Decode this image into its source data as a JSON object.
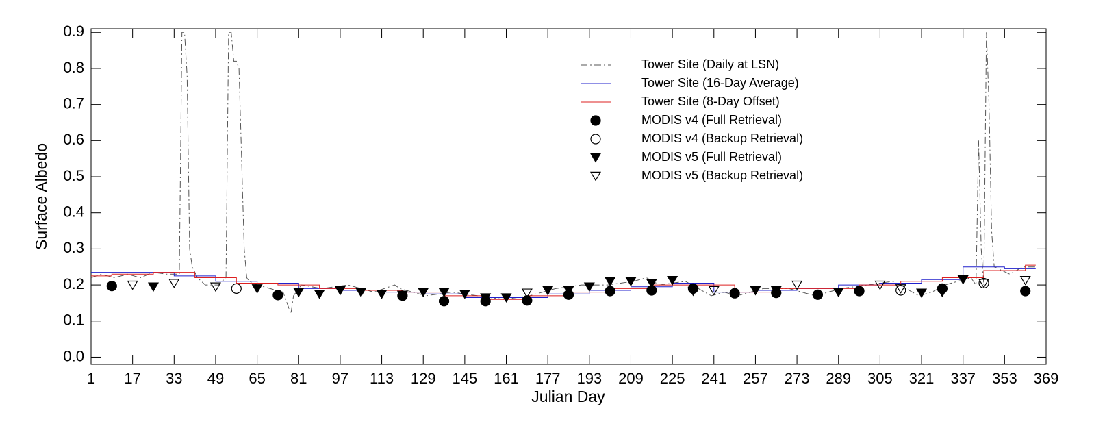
{
  "chart_data": {
    "type": "line",
    "xlabel": "Julian Day",
    "ylabel": "Surface Albedo",
    "xlim": [
      1,
      369
    ],
    "ylim": [
      -0.02,
      0.91
    ],
    "xticks": [
      1,
      17,
      33,
      49,
      65,
      81,
      97,
      113,
      129,
      145,
      161,
      177,
      193,
      209,
      225,
      241,
      257,
      273,
      289,
      305,
      321,
      337,
      353,
      369
    ],
    "yticks": [
      {
        "value": 0,
        "label": "0.0"
      },
      0.1,
      0.2,
      0.3,
      0.4,
      0.5,
      0.6,
      0.7,
      0.8,
      0.9
    ],
    "legend": "upper-center",
    "series": [
      {
        "name": "Tower Site (Daily at LSN)",
        "color": "#555555",
        "style": "dashdot",
        "x": [
          1,
          5,
          10,
          15,
          20,
          25,
          30,
          35,
          36,
          37,
          38,
          39,
          40,
          42,
          45,
          50,
          53,
          54,
          55,
          56,
          57,
          58,
          60,
          61,
          62,
          65,
          70,
          75,
          78,
          79,
          82,
          90,
          100,
          110,
          118,
          120,
          125,
          130,
          140,
          150,
          160,
          170,
          180,
          190,
          200,
          210,
          215,
          220,
          230,
          240,
          245,
          250,
          260,
          270,
          280,
          290,
          300,
          310,
          315,
          320,
          325,
          330,
          335,
          340,
          342,
          343,
          344,
          345,
          346,
          347,
          348,
          349,
          352,
          355,
          360,
          365
        ],
        "values": [
          0.22,
          0.23,
          0.22,
          0.23,
          0.22,
          0.235,
          0.23,
          0.23,
          0.9,
          0.9,
          0.78,
          0.3,
          0.25,
          0.22,
          0.2,
          0.2,
          0.22,
          0.9,
          0.9,
          0.82,
          0.82,
          0.8,
          0.3,
          0.22,
          0.21,
          0.2,
          0.19,
          0.18,
          0.12,
          0.17,
          0.2,
          0.19,
          0.2,
          0.18,
          0.2,
          0.19,
          0.18,
          0.17,
          0.18,
          0.17,
          0.16,
          0.17,
          0.19,
          0.2,
          0.2,
          0.21,
          0.22,
          0.2,
          0.21,
          0.17,
          0.18,
          0.17,
          0.19,
          0.19,
          0.17,
          0.19,
          0.2,
          0.21,
          0.19,
          0.17,
          0.18,
          0.2,
          0.21,
          0.22,
          0.2,
          0.6,
          0.3,
          0.2,
          0.9,
          0.7,
          0.35,
          0.25,
          0.24,
          0.23,
          0.25,
          0.25
        ]
      },
      {
        "name": "Tower Site (16-Day Average)",
        "color": "#2020cc",
        "style": "solid",
        "x": [
          1,
          17,
          17,
          33,
          33,
          49,
          49,
          65,
          65,
          81,
          81,
          97,
          97,
          113,
          113,
          129,
          129,
          145,
          145,
          161,
          161,
          177,
          177,
          193,
          193,
          209,
          209,
          225,
          225,
          241,
          241,
          257,
          257,
          273,
          273,
          289,
          289,
          305,
          305,
          321,
          321,
          337,
          337,
          353,
          353,
          365
        ],
        "values": [
          0.235,
          0.235,
          0.235,
          0.235,
          0.225,
          0.225,
          0.21,
          0.21,
          0.205,
          0.205,
          0.19,
          0.19,
          0.185,
          0.185,
          0.18,
          0.18,
          0.175,
          0.175,
          0.165,
          0.165,
          0.165,
          0.165,
          0.175,
          0.175,
          0.185,
          0.185,
          0.195,
          0.195,
          0.205,
          0.205,
          0.18,
          0.18,
          0.185,
          0.185,
          0.19,
          0.19,
          0.2,
          0.2,
          0.205,
          0.205,
          0.215,
          0.215,
          0.25,
          0.25,
          0.245,
          0.245
        ]
      },
      {
        "name": "Tower Site (8-Day Offset)",
        "color": "#dd2020",
        "style": "solid",
        "x": [
          1,
          9,
          9,
          25,
          25,
          41,
          41,
          57,
          57,
          73,
          73,
          89,
          89,
          105,
          105,
          121,
          121,
          137,
          137,
          153,
          153,
          169,
          169,
          185,
          185,
          201,
          201,
          217,
          217,
          233,
          233,
          249,
          249,
          265,
          265,
          281,
          281,
          297,
          297,
          313,
          313,
          329,
          329,
          345,
          345,
          361,
          361,
          365
        ],
        "values": [
          0.225,
          0.225,
          0.23,
          0.23,
          0.235,
          0.235,
          0.22,
          0.22,
          0.205,
          0.205,
          0.2,
          0.2,
          0.19,
          0.19,
          0.185,
          0.185,
          0.18,
          0.18,
          0.17,
          0.17,
          0.16,
          0.16,
          0.17,
          0.17,
          0.18,
          0.18,
          0.19,
          0.19,
          0.2,
          0.2,
          0.2,
          0.2,
          0.18,
          0.18,
          0.19,
          0.19,
          0.19,
          0.19,
          0.2,
          0.2,
          0.21,
          0.21,
          0.22,
          0.22,
          0.24,
          0.24,
          0.255,
          0.255
        ]
      },
      {
        "name": "MODIS v4 (Full Retrieval)",
        "color": "#000000",
        "style": "marker",
        "marker": "circle",
        "filled": true,
        "x": [
          9,
          73,
          121,
          137,
          153,
          169,
          185,
          201,
          217,
          233,
          249,
          265,
          281,
          297,
          329,
          361
        ],
        "values": [
          0.197,
          0.172,
          0.17,
          0.155,
          0.155,
          0.157,
          0.173,
          0.183,
          0.185,
          0.19,
          0.177,
          0.178,
          0.173,
          0.183,
          0.19,
          0.183
        ]
      },
      {
        "name": "MODIS v4 (Backup Retrieval)",
        "color": "#000000",
        "style": "marker",
        "marker": "circle",
        "filled": false,
        "x": [
          57,
          313,
          345
        ],
        "values": [
          0.19,
          0.185,
          0.205
        ]
      },
      {
        "name": "MODIS v5 (Full Retrieval)",
        "color": "#000000",
        "style": "marker",
        "marker": "triangle",
        "filled": true,
        "x": [
          25,
          65,
          81,
          89,
          97,
          105,
          113,
          121,
          129,
          137,
          145,
          153,
          161,
          177,
          185,
          193,
          201,
          209,
          217,
          225,
          233,
          257,
          265,
          289,
          321,
          329,
          337
        ],
        "values": [
          0.195,
          0.19,
          0.18,
          0.175,
          0.185,
          0.18,
          0.175,
          0.172,
          0.18,
          0.18,
          0.175,
          0.165,
          0.165,
          0.185,
          0.185,
          0.195,
          0.21,
          0.21,
          0.205,
          0.213,
          0.183,
          0.185,
          0.185,
          0.18,
          0.178,
          0.18,
          0.215
        ]
      },
      {
        "name": "MODIS v5 (Backup Retrieval)",
        "color": "#000000",
        "style": "marker",
        "marker": "triangle",
        "filled": false,
        "x": [
          17,
          33,
          49,
          169,
          241,
          273,
          305,
          313,
          345,
          361
        ],
        "values": [
          0.2,
          0.205,
          0.195,
          0.178,
          0.185,
          0.2,
          0.2,
          0.19,
          0.205,
          0.213
        ]
      }
    ]
  }
}
